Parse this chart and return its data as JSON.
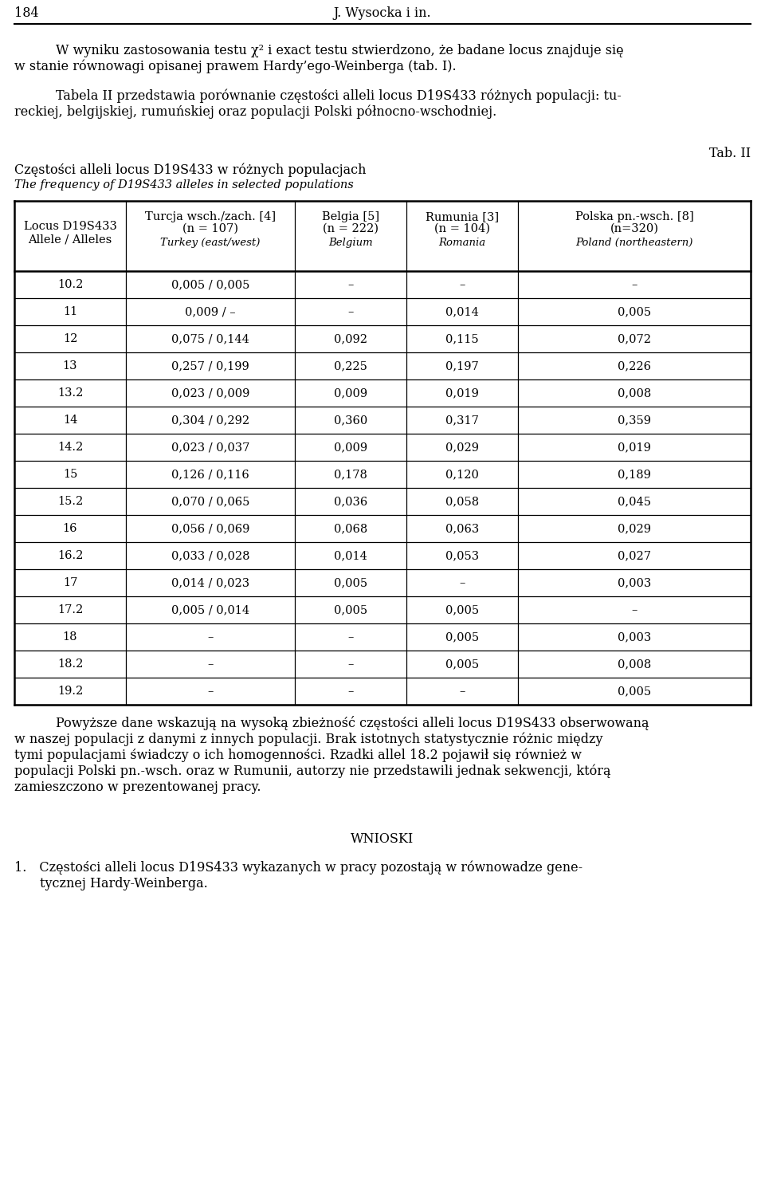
{
  "page_number": "184",
  "page_header": "J. Wysocka i in.",
  "para1_lines": [
    "W wyniku zastosowania testu χ² i exact testu stwierdzono, że badane locus znajduje się",
    "w stanie równowagi opisanej prawem Hardy’ego-Weinberga (tab. I)."
  ],
  "para2_lines": [
    "Tabela II przedstawia porównanie częstości alleli locus D19S433 różnych populacji: tu-",
    "reckiej, belgijskiej, rumuńskiej oraz populacji Polski północno-wschodniej."
  ],
  "tab_label": "Tab. II",
  "table_title_pl": "Częstości alleli locus D19S433 w różnych populacjach",
  "table_title_en": "The frequency of D19S433 alleles in selected populations",
  "col0_h1": "Locus D19S433",
  "col0_h2": "Allele / Alleles",
  "col1_h1": "Turcja wsch./zach. [4]",
  "col1_h2": "(n = 107)",
  "col1_h3": "Turkey (east/west)",
  "col2_h1": "Belgia [5]",
  "col2_h2": "(n = 222)",
  "col2_h3": "Belgium",
  "col3_h1": "Rumunia [3]",
  "col3_h2": "(n = 104)",
  "col3_h3": "Romania",
  "col4_h1": "Polska pn.-wsch. [8]",
  "col4_h2": "(n=320)",
  "col4_h3": "Poland (northeastern)",
  "rows": [
    [
      "10.2",
      "0,005 / 0,005",
      "–",
      "–",
      "–"
    ],
    [
      "11",
      "0,009 / –",
      "–",
      "0,014",
      "0,005"
    ],
    [
      "12",
      "0,075 / 0,144",
      "0,092",
      "0,115",
      "0,072"
    ],
    [
      "13",
      "0,257 / 0,199",
      "0,225",
      "0,197",
      "0,226"
    ],
    [
      "13.2",
      "0,023 / 0,009",
      "0,009",
      "0,019",
      "0,008"
    ],
    [
      "14",
      "0,304 / 0,292",
      "0,360",
      "0,317",
      "0,359"
    ],
    [
      "14.2",
      "0,023 / 0,037",
      "0,009",
      "0,029",
      "0,019"
    ],
    [
      "15",
      "0,126 / 0,116",
      "0,178",
      "0,120",
      "0,189"
    ],
    [
      "15.2",
      "0,070 / 0,065",
      "0,036",
      "0,058",
      "0,045"
    ],
    [
      "16",
      "0,056 / 0,069",
      "0,068",
      "0,063",
      "0,029"
    ],
    [
      "16.2",
      "0,033 / 0,028",
      "0,014",
      "0,053",
      "0,027"
    ],
    [
      "17",
      "0,014 / 0,023",
      "0,005",
      "–",
      "0,003"
    ],
    [
      "17.2",
      "0,005 / 0,014",
      "0,005",
      "0,005",
      "–"
    ],
    [
      "18",
      "–",
      "–",
      "0,005",
      "0,003"
    ],
    [
      "18.2",
      "–",
      "–",
      "0,005",
      "0,008"
    ],
    [
      "19.2",
      "–",
      "–",
      "–",
      "0,005"
    ]
  ],
  "para3_lines": [
    "Powyższe dane wskazują na wysoką zbieżność częstości alleli locus D19S433 obserwowaną",
    "w naszej populacji z danymi z innych populacji. Brak istotnych statystycznie różnic między",
    "tymi populacjami świadczy o ich homogenności. Rzadki allel 18.2 pojawił się również w",
    "populacji Polski pn.-wsch. oraz w Rumunii, autorzy nie przedstawili jednak sekwencji, którą",
    "zamieszczono w prezentowanej pracy."
  ],
  "section_header": "WNIOSKI",
  "conclusion_line1": "1. Częstości alleli locus D19S433 wykazanych w pracy pozostają w równowadze gene-",
  "conclusion_line2": "tycznej Hardy-Weinberga."
}
